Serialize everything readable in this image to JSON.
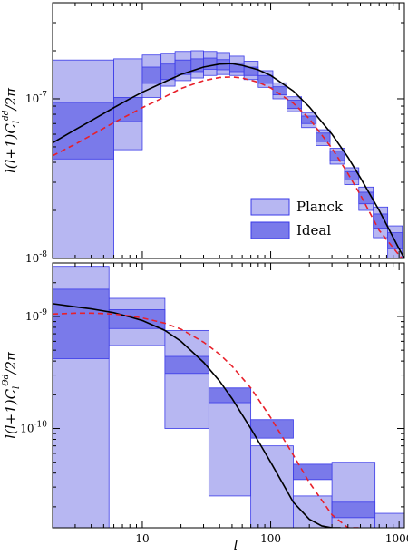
{
  "colors": {
    "planck_fill": "#b7b7f2",
    "planck_edge": "#3a3ae8",
    "ideal_fill": "#7a7aea",
    "theory_solid": "#000000",
    "theory_dashed": "#e8202a"
  },
  "chart_data": [
    {
      "type": "line",
      "panel": "top",
      "ylabel_html": "l(l+1)C<tspan dy=\"4\" font-size=\"10\">l</tspan><tspan dy=\"-12\" font-size=\"9\">dd</tspan><tspan dy=\"8\">/2π</tspan>",
      "ylabel_text": "l(l+1)C_l^dd/2π",
      "x_scale": "log",
      "y_scale": "log",
      "xlim": [
        2,
        1100
      ],
      "ylim": [
        1e-08,
        4e-07
      ],
      "y_ticks": [
        {
          "value": 1e-08,
          "base": "10",
          "exp": "-8"
        },
        {
          "value": 1e-07,
          "base": "10",
          "exp": "-7"
        }
      ],
      "legend": {
        "position": "bottom-right",
        "entries": [
          "Planck",
          "Ideal"
        ]
      },
      "series": [
        {
          "name": "Planck",
          "style": "box",
          "boxes": [
            [
              2,
              6,
              1e-08,
              1.75e-07
            ],
            [
              6,
              10,
              4.8e-08,
              1.78e-07
            ],
            [
              10,
              14,
              1.02e-07,
              1.88e-07
            ],
            [
              14,
              18,
              1.2e-07,
              1.93e-07
            ],
            [
              18,
              24,
              1.3e-07,
              1.98e-07
            ],
            [
              24,
              30,
              1.35e-07,
              2e-07
            ],
            [
              30,
              38,
              1.4e-07,
              1.98e-07
            ],
            [
              38,
              48,
              1.42e-07,
              1.95e-07
            ],
            [
              48,
              62,
              1.4e-07,
              1.85e-07
            ],
            [
              62,
              80,
              1.32e-07,
              1.72e-07
            ],
            [
              80,
              104,
              1.18e-07,
              1.5e-07
            ],
            [
              104,
              134,
              1e-07,
              1.26e-07
            ],
            [
              134,
              174,
              8.3e-08,
              1.03e-07
            ],
            [
              174,
              226,
              6.6e-08,
              8.2e-08
            ],
            [
              226,
              290,
              5.1e-08,
              6.4e-08
            ],
            [
              290,
              376,
              3.9e-08,
              4.9e-08
            ],
            [
              376,
              486,
              2.9e-08,
              3.7e-08
            ],
            [
              486,
              630,
              2e-08,
              2.8e-08
            ],
            [
              630,
              816,
              1.35e-08,
              2.1e-08
            ],
            [
              816,
              1060,
              1e-08,
              1.6e-08
            ]
          ]
        },
        {
          "name": "Ideal",
          "style": "box",
          "boxes": [
            [
              2,
              6,
              4.2e-08,
              9.5e-08
            ],
            [
              6,
              10,
              7.2e-08,
              1.02e-07
            ],
            [
              10,
              14,
              1.25e-07,
              1.58e-07
            ],
            [
              14,
              18,
              1.32e-07,
              1.65e-07
            ],
            [
              18,
              24,
              1.42e-07,
              1.75e-07
            ],
            [
              24,
              30,
              1.48e-07,
              1.78e-07
            ],
            [
              30,
              38,
              1.53e-07,
              1.8e-07
            ],
            [
              38,
              48,
              1.52e-07,
              1.76e-07
            ],
            [
              48,
              62,
              1.48e-07,
              1.68e-07
            ],
            [
              62,
              80,
              1.4e-07,
              1.58e-07
            ],
            [
              80,
              104,
              1.25e-07,
              1.4e-07
            ],
            [
              104,
              134,
              1.06e-07,
              1.19e-07
            ],
            [
              134,
              174,
              8.7e-08,
              9.8e-08
            ],
            [
              174,
              226,
              7e-08,
              7.8e-08
            ],
            [
              226,
              290,
              5.4e-08,
              6.1e-08
            ],
            [
              290,
              376,
              4.1e-08,
              4.7e-08
            ],
            [
              376,
              486,
              3.1e-08,
              3.5e-08
            ],
            [
              486,
              630,
              2.2e-08,
              2.6e-08
            ],
            [
              630,
              816,
              1.55e-08,
              1.9e-08
            ],
            [
              816,
              1060,
              1.15e-08,
              1.45e-08
            ]
          ]
        },
        {
          "style": "solid",
          "x": [
            2,
            3,
            4,
            6,
            8,
            10,
            15,
            20,
            30,
            40,
            50,
            60,
            80,
            100,
            150,
            200,
            300,
            400,
            500,
            700,
            1000,
            1100
          ],
          "y": [
            5.3e-08,
            6.4e-08,
            7.3e-08,
            8.8e-08,
            1e-07,
            1.1e-07,
            1.28e-07,
            1.42e-07,
            1.58e-07,
            1.65e-07,
            1.66e-07,
            1.62e-07,
            1.52e-07,
            1.4e-07,
            1.12e-07,
            8.9e-08,
            6e-08,
            4.3e-08,
            3.2e-08,
            2e-08,
            1.15e-08,
            1e-08
          ]
        },
        {
          "style": "dashed",
          "x": [
            2,
            3,
            4,
            6,
            8,
            10,
            15,
            20,
            30,
            40,
            50,
            60,
            80,
            100,
            150,
            200,
            300,
            400,
            500,
            700,
            1000,
            1060
          ],
          "y": [
            4.4e-08,
            5.2e-08,
            5.9e-08,
            7.1e-08,
            8e-08,
            8.8e-08,
            1.03e-07,
            1.16e-07,
            1.3e-07,
            1.36e-07,
            1.37e-07,
            1.35e-07,
            1.27e-07,
            1.17e-07,
            9.4e-08,
            7.5e-08,
            4.9e-08,
            3.4e-08,
            2.5e-08,
            1.5e-08,
            1.05e-08,
            1e-08
          ]
        }
      ]
    },
    {
      "type": "line",
      "panel": "bottom",
      "ylabel_html": "l(l+1)C<tspan dy=\"4\" font-size=\"10\">l</tspan><tspan dy=\"-12\" font-size=\"9\">Θd</tspan><tspan dy=\"8\">/2π</tspan>",
      "ylabel_text": "l(l+1)C_l^Θd/2π",
      "xlabel": "l",
      "x_scale": "log",
      "y_scale": "log",
      "xlim": [
        2,
        1100
      ],
      "ylim": [
        1.3e-11,
        3e-09
      ],
      "x_ticks": [
        10,
        100,
        1000
      ],
      "y_ticks": [
        {
          "value": 1e-10,
          "base": "10",
          "exp": "-10"
        },
        {
          "value": 1e-09,
          "base": "10",
          "exp": "-9"
        }
      ],
      "series": [
        {
          "name": "Planck",
          "style": "box",
          "boxes": [
            [
              2,
              5.5,
              1.3e-11,
              2.8e-09
            ],
            [
              5.5,
              15,
              5.5e-10,
              1.45e-09
            ],
            [
              15,
              33,
              1e-10,
              7.5e-10
            ],
            [
              33,
              70,
              2.5e-11,
              2.3e-10
            ],
            [
              70,
              150,
              1.3e-11,
              7e-11
            ],
            [
              150,
              300,
              1.3e-11,
              2.5e-11
            ],
            [
              300,
              650,
              1.3e-11,
              5e-11
            ],
            [
              650,
              1100,
              1.3e-11,
              1.75e-11
            ]
          ]
        },
        {
          "name": "Ideal",
          "style": "box",
          "boxes": [
            [
              2,
              5.5,
              4.2e-10,
              1.75e-09
            ],
            [
              5.5,
              15,
              7.8e-10,
              1.15e-09
            ],
            [
              15,
              33,
              3.1e-10,
              4.4e-10
            ],
            [
              33,
              70,
              1.7e-10,
              2.3e-10
            ],
            [
              70,
              150,
              8.2e-11,
              1.2e-10
            ],
            [
              150,
              300,
              3.5e-11,
              4.8e-11
            ],
            [
              300,
              650,
              1.6e-11,
              2.2e-11
            ]
          ]
        },
        {
          "style": "solid",
          "x": [
            2,
            3,
            4,
            5,
            6,
            8,
            10,
            15,
            20,
            30,
            40,
            50,
            70,
            100,
            150,
            200,
            250,
            300,
            350
          ],
          "y": [
            1.3e-09,
            1.22e-09,
            1.17e-09,
            1.12e-09,
            1.08e-09,
            9.9e-10,
            9.2e-10,
            7.5e-10,
            6e-10,
            3.9e-10,
            2.65e-10,
            1.85e-10,
            1e-10,
            5e-11,
            2.2e-11,
            1.55e-11,
            1.35e-11,
            1.3e-11,
            1.3e-11
          ]
        },
        {
          "style": "dashed",
          "x": [
            2,
            3,
            4,
            5,
            6,
            8,
            10,
            15,
            20,
            30,
            40,
            50,
            70,
            100,
            150,
            200,
            300,
            400,
            500
          ],
          "y": [
            1.05e-09,
            1.07e-09,
            1.07e-09,
            1.06e-09,
            1.05e-09,
            1.01e-09,
            9.7e-10,
            8.7e-10,
            7.7e-10,
            5.9e-10,
            4.6e-10,
            3.6e-10,
            2.3e-10,
            1.25e-10,
            5.8e-11,
            3.3e-11,
            1.7e-11,
            1.3e-11,
            1.3e-11
          ]
        }
      ]
    }
  ]
}
